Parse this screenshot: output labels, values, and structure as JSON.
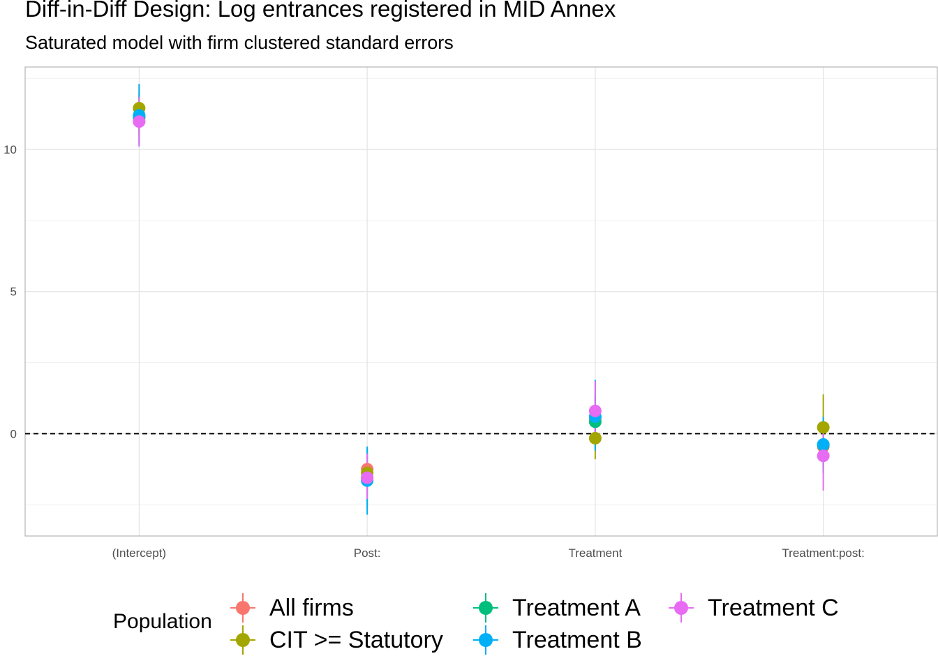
{
  "chart_data": {
    "type": "scatter",
    "title": "Diff-in-Diff Design: Log entrances registered in MID Annex",
    "subtitle": "Saturated model with firm clustered standard errors",
    "xlabel": "",
    "ylabel": "",
    "categories": [
      "(Intercept)",
      "Post:",
      "Treatment",
      "Treatment:post:"
    ],
    "ylim": [
      -3.6,
      12.9
    ],
    "yticks": [
      0,
      5,
      10
    ],
    "reference_line": 0,
    "grid": true,
    "legend": {
      "title": "Population",
      "position": "bottom"
    },
    "series": [
      {
        "name": "All firms",
        "color": "#F8766D",
        "estimates": [
          11.15,
          -1.25,
          0.55,
          -0.45
        ],
        "lower": [
          10.4,
          -1.9,
          -0.2,
          -1.2
        ],
        "upper": [
          11.9,
          -0.6,
          1.3,
          0.3
        ]
      },
      {
        "name": "CIT >= Statutory",
        "color": "#A3A500",
        "estimates": [
          11.45,
          -1.38,
          -0.16,
          0.22
        ],
        "lower": [
          10.6,
          -2.0,
          -0.9,
          -0.9
        ],
        "upper": [
          12.3,
          -0.75,
          0.6,
          1.38
        ]
      },
      {
        "name": "Treatment A",
        "color": "#00BF7D",
        "estimates": [
          11.1,
          -1.55,
          0.42,
          -0.4
        ],
        "lower": [
          10.2,
          -2.6,
          -0.5,
          -1.3
        ],
        "upper": [
          12.0,
          -0.5,
          1.3,
          0.5
        ]
      },
      {
        "name": "Treatment B",
        "color": "#00B0F6",
        "estimates": [
          11.2,
          -1.65,
          0.6,
          -0.38
        ],
        "lower": [
          10.1,
          -2.85,
          -0.6,
          -1.4
        ],
        "upper": [
          12.3,
          -0.45,
          1.9,
          0.6
        ]
      },
      {
        "name": "Treatment C",
        "color": "#E76BF3",
        "estimates": [
          10.98,
          -1.55,
          0.8,
          -0.78
        ],
        "lower": [
          10.1,
          -2.3,
          -0.25,
          -2.0
        ],
        "upper": [
          11.85,
          -0.7,
          1.85,
          0.35
        ]
      }
    ]
  }
}
